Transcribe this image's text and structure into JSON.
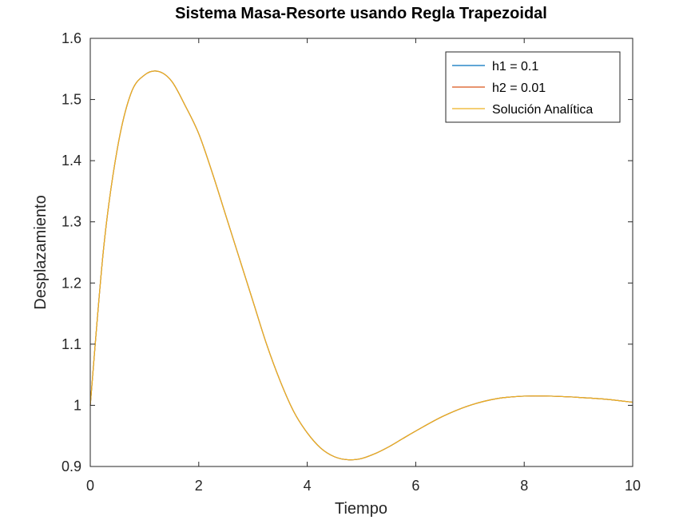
{
  "chart_data": {
    "type": "line",
    "title": "Sistema Masa-Resorte usando Regla Trapezoidal",
    "xlabel": "Tiempo",
    "ylabel": "Desplazamiento",
    "xlim": [
      0,
      10
    ],
    "ylim": [
      0.9,
      1.6
    ],
    "xticks": [
      0,
      2,
      4,
      6,
      8,
      10
    ],
    "xtick_labels": [
      "0",
      "2",
      "4",
      "6",
      "8",
      "10"
    ],
    "yticks": [
      0.9,
      1.0,
      1.1,
      1.2,
      1.3,
      1.4,
      1.5,
      1.6
    ],
    "ytick_labels": [
      "0.9",
      "1",
      "1.1",
      "1.2",
      "1.3",
      "1.4",
      "1.5",
      "1.6"
    ],
    "grid": false,
    "legend_position": "top-right",
    "series": [
      {
        "name": "h1 = 0.1",
        "color": "#0072BD",
        "x": [
          0,
          0.25,
          0.5,
          0.75,
          1.0,
          1.25,
          1.5,
          1.75,
          2.0,
          2.25,
          2.5,
          2.75,
          3.0,
          3.25,
          3.5,
          3.75,
          4.0,
          4.25,
          4.5,
          4.75,
          5.0,
          5.25,
          5.5,
          5.75,
          6.0,
          6.5,
          7.0,
          7.5,
          8.0,
          8.5,
          9.0,
          9.5,
          10.0
        ],
        "values": [
          1.0,
          1.26,
          1.42,
          1.51,
          1.54,
          1.546,
          1.53,
          1.49,
          1.444,
          1.38,
          1.31,
          1.24,
          1.17,
          1.1,
          1.04,
          0.99,
          0.955,
          0.93,
          0.916,
          0.911,
          0.913,
          0.921,
          0.932,
          0.945,
          0.958,
          0.982,
          1.0,
          1.011,
          1.015,
          1.015,
          1.013,
          1.01,
          1.005
        ]
      },
      {
        "name": "h2 = 0.01",
        "color": "#D95319",
        "x": [
          0,
          0.25,
          0.5,
          0.75,
          1.0,
          1.25,
          1.5,
          1.75,
          2.0,
          2.25,
          2.5,
          2.75,
          3.0,
          3.25,
          3.5,
          3.75,
          4.0,
          4.25,
          4.5,
          4.75,
          5.0,
          5.25,
          5.5,
          5.75,
          6.0,
          6.5,
          7.0,
          7.5,
          8.0,
          8.5,
          9.0,
          9.5,
          10.0
        ],
        "values": [
          1.0,
          1.26,
          1.42,
          1.51,
          1.54,
          1.546,
          1.53,
          1.49,
          1.444,
          1.38,
          1.31,
          1.24,
          1.17,
          1.1,
          1.04,
          0.99,
          0.955,
          0.93,
          0.916,
          0.911,
          0.913,
          0.921,
          0.932,
          0.945,
          0.958,
          0.982,
          1.0,
          1.011,
          1.015,
          1.015,
          1.013,
          1.01,
          1.005
        ]
      },
      {
        "name": "Solución Analítica",
        "color": "#EDB120",
        "x": [
          0,
          0.25,
          0.5,
          0.75,
          1.0,
          1.25,
          1.5,
          1.75,
          2.0,
          2.25,
          2.5,
          2.75,
          3.0,
          3.25,
          3.5,
          3.75,
          4.0,
          4.25,
          4.5,
          4.75,
          5.0,
          5.25,
          5.5,
          5.75,
          6.0,
          6.5,
          7.0,
          7.5,
          8.0,
          8.5,
          9.0,
          9.5,
          10.0
        ],
        "values": [
          1.0,
          1.26,
          1.42,
          1.51,
          1.54,
          1.546,
          1.53,
          1.49,
          1.444,
          1.38,
          1.31,
          1.24,
          1.17,
          1.1,
          1.04,
          0.99,
          0.955,
          0.93,
          0.916,
          0.911,
          0.913,
          0.921,
          0.932,
          0.945,
          0.958,
          0.982,
          1.0,
          1.011,
          1.015,
          1.015,
          1.013,
          1.01,
          1.005
        ]
      }
    ]
  }
}
